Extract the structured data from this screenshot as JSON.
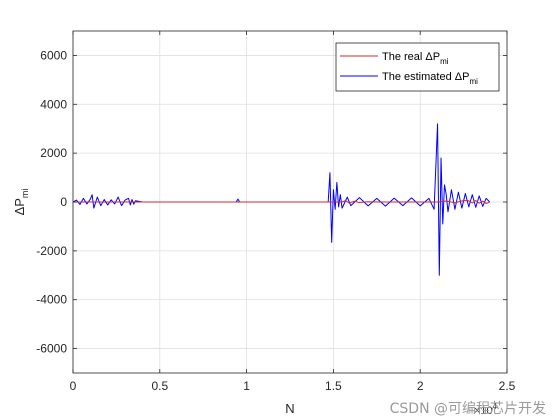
{
  "chart_data": {
    "type": "line",
    "xlabel": "N",
    "xlabel_multiplier": "×10",
    "xlabel_multiplier_exp": "4",
    "ylabel": "ΔP",
    "ylabel_sub": "mi",
    "xlim": [
      0,
      2.5
    ],
    "ylim": [
      -7000,
      7000
    ],
    "x_ticks": [
      0,
      0.5,
      1,
      1.5,
      2,
      2.5
    ],
    "x_tick_labels": [
      "0",
      "0.5",
      "1",
      "1.5",
      "2",
      "2.5"
    ],
    "y_ticks": [
      -6000,
      -4000,
      -2000,
      0,
      2000,
      4000,
      6000
    ],
    "y_tick_labels": [
      "-6000",
      "-4000",
      "-2000",
      "0",
      "2000",
      "4000",
      "6000"
    ],
    "grid": true,
    "legend_position": "top-right",
    "series": [
      {
        "name": "The real ΔP",
        "name_sub": "mi",
        "color": "#d62728",
        "x": [
          0,
          1.55,
          1.57,
          1.59,
          1.62,
          1.65,
          1.7,
          1.75,
          1.8,
          1.85,
          1.9,
          1.95,
          2.0,
          2.05,
          2.1,
          2.15,
          2.2,
          2.25,
          2.28,
          2.3,
          2.32,
          2.34,
          2.36,
          2.38,
          2.4
        ],
        "y": [
          0,
          0,
          60,
          -40,
          30,
          -20,
          10,
          0,
          0,
          0,
          0,
          0,
          0,
          0,
          0,
          40,
          -30,
          60,
          50,
          -40,
          60,
          -50,
          40,
          -60,
          0
        ]
      },
      {
        "name": "The estimated ΔP",
        "name_sub": "mi",
        "color": "#0000ff",
        "x": [
          0,
          0.02,
          0.04,
          0.06,
          0.08,
          0.1,
          0.11,
          0.12,
          0.14,
          0.16,
          0.18,
          0.2,
          0.22,
          0.24,
          0.26,
          0.28,
          0.3,
          0.32,
          0.33,
          0.34,
          0.35,
          0.36,
          0.4,
          0.94,
          0.95,
          0.96,
          1.47,
          1.48,
          1.49,
          1.5,
          1.51,
          1.52,
          1.53,
          1.54,
          1.55,
          1.58,
          1.6,
          1.65,
          1.7,
          1.75,
          1.8,
          1.85,
          1.9,
          1.95,
          2.0,
          2.05,
          2.08,
          2.1,
          2.11,
          2.12,
          2.13,
          2.14,
          2.15,
          2.16,
          2.18,
          2.2,
          2.22,
          2.24,
          2.26,
          2.28,
          2.3,
          2.32,
          2.34,
          2.36,
          2.38,
          2.4
        ],
        "y": [
          0,
          80,
          -100,
          150,
          -80,
          120,
          300,
          -250,
          200,
          -150,
          100,
          -120,
          90,
          -80,
          200,
          -150,
          80,
          150,
          -120,
          100,
          -90,
          50,
          0,
          0,
          120,
          0,
          0,
          1200,
          -1650,
          500,
          -300,
          800,
          -200,
          300,
          -250,
          200,
          -150,
          180,
          -160,
          150,
          -170,
          160,
          -150,
          170,
          -160,
          150,
          -300,
          3200,
          -3000,
          1800,
          -900,
          700,
          300,
          -400,
          500,
          -300,
          400,
          -250,
          350,
          -200,
          300,
          -220,
          250,
          -180,
          150,
          0
        ]
      }
    ]
  },
  "watermark": "CSDN @可编程芯片开发"
}
